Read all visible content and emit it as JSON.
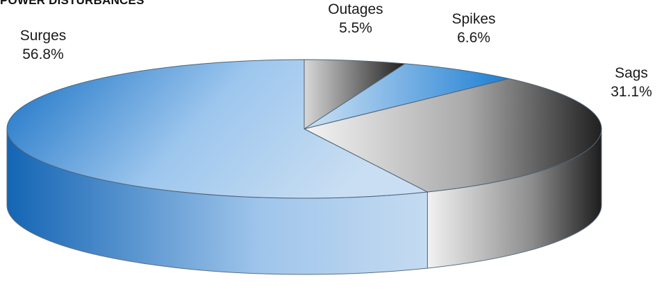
{
  "chart_data": {
    "type": "pie",
    "style": "3d",
    "title": "POWER DISTURBANCES",
    "slices": [
      {
        "name": "Surges",
        "value": 56.8,
        "label": "56.8%",
        "color": "#1f7fd0"
      },
      {
        "name": "Outages",
        "value": 5.5,
        "label": "5.5%",
        "color": "#5a5a5a"
      },
      {
        "name": "Spikes",
        "value": 6.6,
        "label": "6.6%",
        "color": "#2b8ad8"
      },
      {
        "name": "Sags",
        "value": 31.1,
        "label": "31.1%",
        "color": "#3a3a3a"
      }
    ]
  }
}
